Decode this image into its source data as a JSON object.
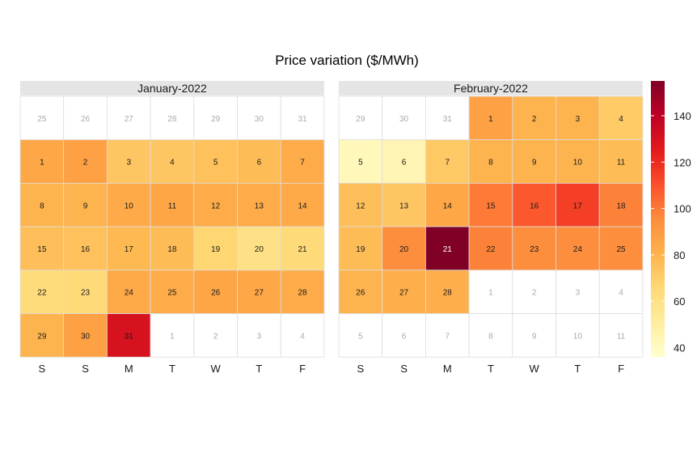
{
  "chart_data": {
    "type": "heatmap",
    "title": "Price variation ($/MWh)",
    "weekday_labels": [
      "S",
      "S",
      "M",
      "T",
      "W",
      "T",
      "F"
    ],
    "color_scale": {
      "min": 36,
      "max": 155,
      "ticks": [
        40,
        60,
        80,
        100,
        120,
        140
      ],
      "stops": [
        "#ffffcc",
        "#ffeda0",
        "#fed976",
        "#feb24c",
        "#fd8d3c",
        "#fc4e2a",
        "#e31a1c",
        "#bd0026",
        "#800026"
      ]
    },
    "panels": [
      {
        "title": "January-2022",
        "leading_days": [
          25,
          26,
          27,
          28,
          29,
          30,
          31
        ],
        "trailing_days": [
          1,
          2,
          3,
          4
        ],
        "start_weekday_index": 0,
        "values": [
          85,
          88,
          73,
          73,
          75,
          77,
          83,
          80,
          80,
          84,
          86,
          83,
          83,
          84,
          76,
          75,
          78,
          77,
          67,
          60,
          65,
          64,
          65,
          84,
          83,
          86,
          85,
          83,
          80,
          88,
          130
        ]
      },
      {
        "title": "February-2022",
        "leading_days": [
          29,
          30,
          31
        ],
        "trailing_days": [
          1,
          2,
          3,
          4,
          5,
          6,
          7,
          8,
          9,
          10,
          11
        ],
        "start_weekday_index": 3,
        "values": [
          88,
          80,
          80,
          71,
          42,
          45,
          72,
          80,
          80,
          80,
          77,
          76,
          73,
          85,
          100,
          108,
          115,
          98,
          77,
          95,
          155,
          98,
          95,
          95,
          95,
          80,
          82,
          82
        ]
      }
    ]
  }
}
